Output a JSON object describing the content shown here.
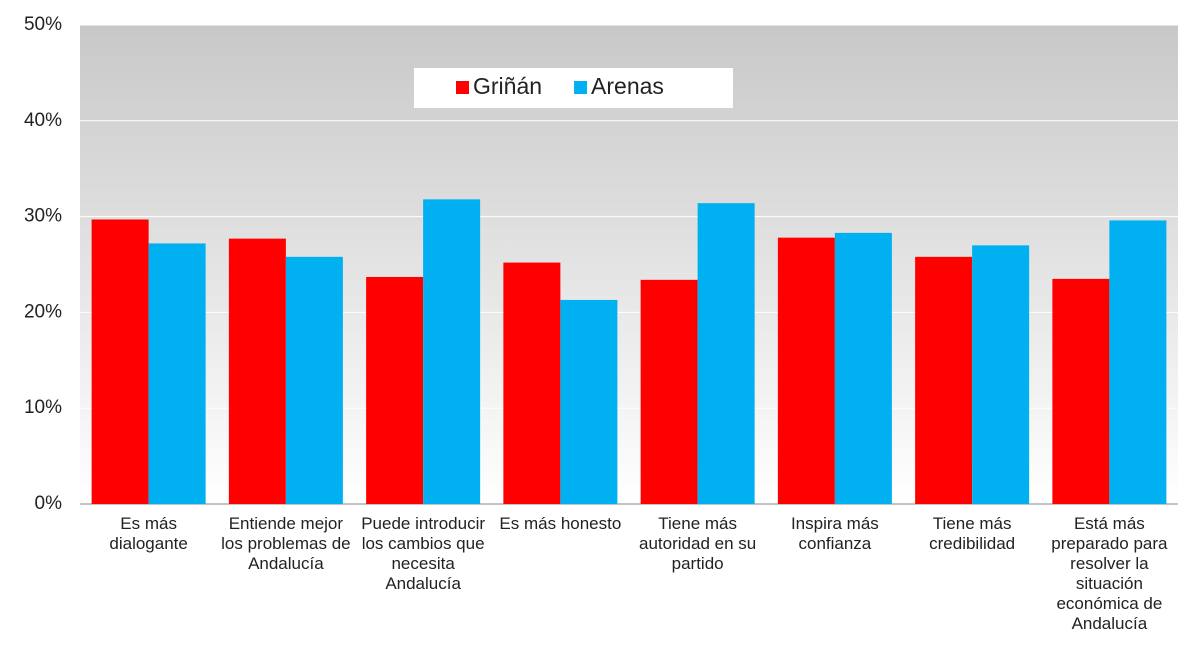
{
  "chart_data": {
    "type": "bar",
    "categories": [
      "Es más dialogante",
      "Entiende mejor los problemas de Andalucía",
      "Puede introducir los cambios que necesita Andalucía",
      "Es más honesto",
      "Tiene más autoridad en su partido",
      "Inspira más confianza",
      "Tiene más credibilidad",
      "Está más preparado para resolver la situación económica de Andalucía"
    ],
    "series": [
      {
        "name": "Griñán",
        "color": "#ff0000",
        "values": [
          29.7,
          27.7,
          23.7,
          25.2,
          23.4,
          27.8,
          25.8,
          23.5
        ]
      },
      {
        "name": "Arenas",
        "color": "#00b0f0",
        "values": [
          27.2,
          25.8,
          31.8,
          21.3,
          31.4,
          28.3,
          27.0,
          29.6
        ]
      }
    ],
    "ylim": [
      0,
      50
    ],
    "yticks": [
      {
        "value": 0,
        "label": "0%"
      },
      {
        "value": 10,
        "label": "10%"
      },
      {
        "value": 20,
        "label": "20%"
      },
      {
        "value": 30,
        "label": "30%"
      },
      {
        "value": 40,
        "label": "40%"
      },
      {
        "value": 50,
        "label": "50%"
      }
    ],
    "grid": true,
    "legend": "top"
  }
}
